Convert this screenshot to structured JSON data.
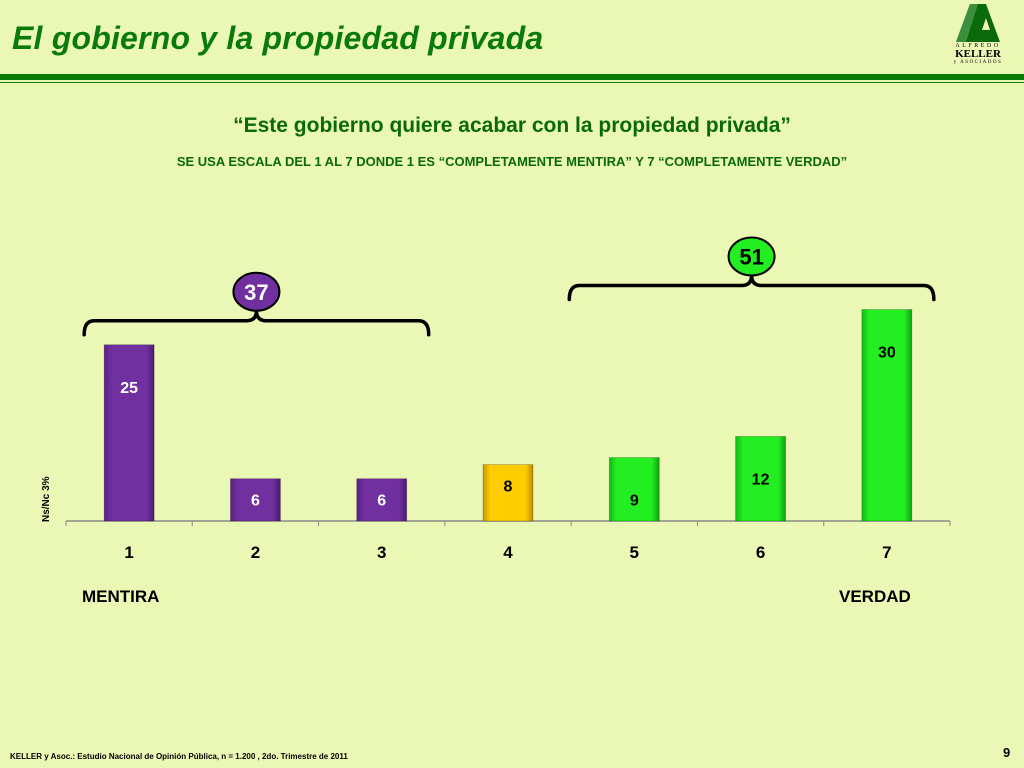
{
  "header": {
    "title": "El gobierno y la propiedad privada",
    "logo": {
      "top": "ALFREDO",
      "main": "KELLER",
      "bottom": "y ASOCIADOS"
    }
  },
  "subtitle": {
    "quote": "“Este gobierno quiere acabar con la propiedad privada”",
    "scale_note": "SE USA ESCALA DEL 1 AL 7 DONDE 1 ES “COMPLETAMENTE MENTIRA” Y 7 “COMPLETAMENTE VERDAD”"
  },
  "colors": {
    "background": "#ebf7b4",
    "title_green": "#0a7a0a",
    "purple": "#7030a0",
    "yellow": "#ffcc00",
    "green": "#22ee22"
  },
  "chart_data": {
    "type": "bar",
    "categories": [
      "1",
      "2",
      "3",
      "4",
      "5",
      "6",
      "7"
    ],
    "values": [
      25,
      6,
      6,
      8,
      9,
      12,
      30
    ],
    "bar_colors": [
      "purple",
      "purple",
      "purple",
      "yellow",
      "green",
      "green",
      "green"
    ],
    "ylim": [
      0,
      30
    ],
    "grid": false,
    "y_label": "Ns/Nc  3%",
    "groups": [
      {
        "from": 0,
        "to": 2,
        "total": "37",
        "color": "purple"
      },
      {
        "from": 4,
        "to": 6,
        "total": "51",
        "color": "green"
      }
    ],
    "left_end_label": "MENTIRA",
    "right_end_label": "VERDAD"
  },
  "footer": {
    "source": "KELLER y Asoc.: Estudio Nacional de Opinión Pública, n = 1.200 , 2do. Trimestre de 2011",
    "page": "9"
  }
}
